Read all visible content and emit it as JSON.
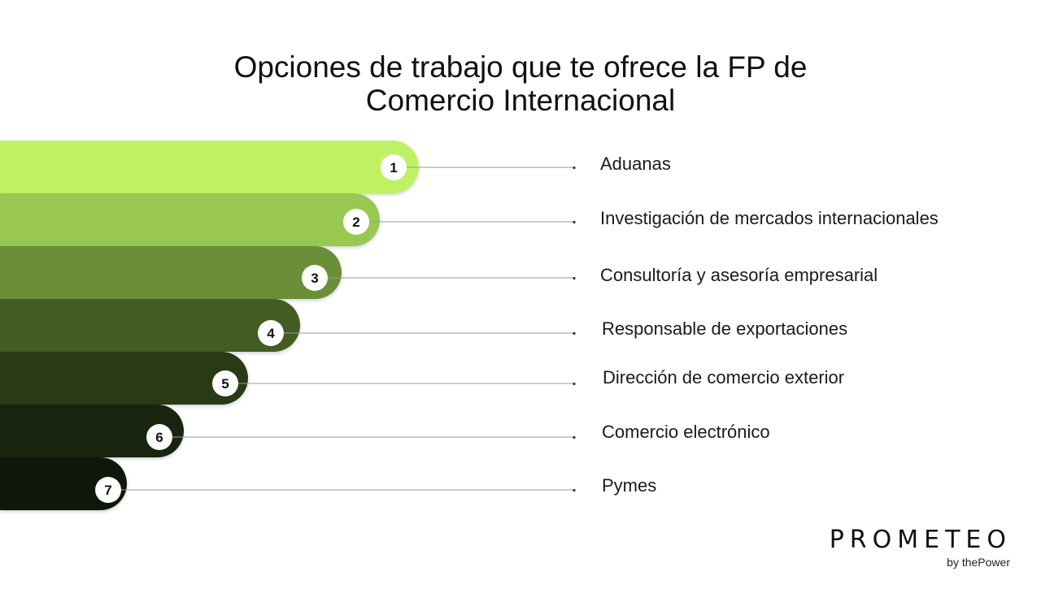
{
  "title": {
    "line1": "Opciones de trabajo que te ofrece la FP de",
    "line2": "Comercio Internacional"
  },
  "items": [
    {
      "number": "1",
      "label": "Aduanas",
      "color": "#bef264"
    },
    {
      "number": "2",
      "label": "Investigación de mercados internacionales",
      "color": "#98c84f"
    },
    {
      "number": "3",
      "label": "Consultoría y asesoría empresarial",
      "color": "#6b8f38"
    },
    {
      "number": "4",
      "label": "Responsable de exportaciones",
      "color": "#445c24"
    },
    {
      "number": "5",
      "label": "Dirección de comercio exterior",
      "color": "#283a16"
    },
    {
      "number": "6",
      "label": "Comercio electrónico",
      "color": "#18240e"
    },
    {
      "number": "7",
      "label": "Pymes",
      "color": "#0f160a"
    }
  ],
  "logo": {
    "wordmark": "PROMETEO",
    "tagline": "by thePower"
  }
}
